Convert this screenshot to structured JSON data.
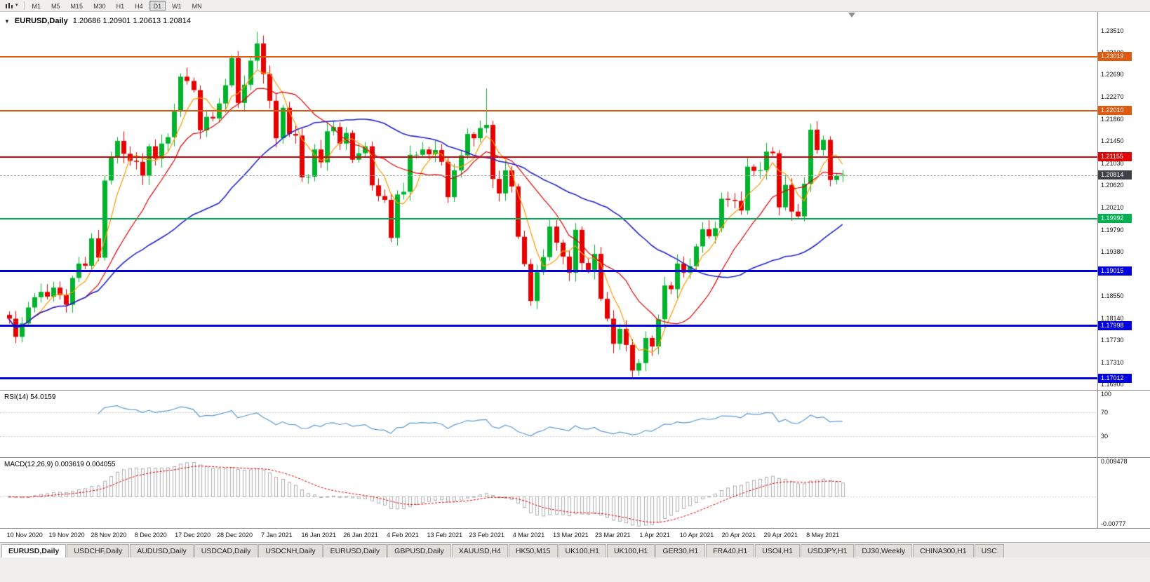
{
  "toolbar": {
    "timeframes": [
      "M1",
      "M5",
      "M15",
      "M30",
      "H1",
      "H4",
      "D1",
      "W1",
      "MN"
    ],
    "active_timeframe": "D1"
  },
  "chart": {
    "title": "EURUSD,Daily",
    "ohlc": "1.20686 1.20901 1.20613 1.20814",
    "price_axis": [
      "1.23510",
      "1.23100",
      "1.22690",
      "1.22270",
      "1.21860",
      "1.21450",
      "1.21030",
      "1.20620",
      "1.20210",
      "1.19790",
      "1.19380",
      "1.18970",
      "1.18550",
      "1.18140",
      "1.17730",
      "1.17310",
      "1.16900"
    ],
    "hlines": [
      {
        "price": "1.23019",
        "value": 1.23019,
        "color": "#DF5A0F",
        "width": 2
      },
      {
        "price": "1.22010",
        "value": 1.2201,
        "color": "#DF5A0F",
        "width": 2
      },
      {
        "price": "1.21155",
        "value": 1.21155,
        "color": "#DD0505",
        "width": 2
      },
      {
        "price": "1.19992",
        "value": 1.19992,
        "color": "#00B050",
        "width": 2
      },
      {
        "price": "1.19015",
        "value": 1.19015,
        "color": "#0000E0",
        "width": 3
      },
      {
        "price": "1.17998",
        "value": 1.17998,
        "color": "#0000E0",
        "width": 3
      },
      {
        "price": "1.17012",
        "value": 1.17012,
        "color": "#0000E0",
        "width": 3
      }
    ],
    "current_price": {
      "label": "1.20814",
      "value": 1.20814,
      "color": "#3f3f46"
    },
    "date_axis": [
      "10 Nov 2020",
      "19 Nov 2020",
      "28 Nov 2020",
      "8 Dec 2020",
      "17 Dec 2020",
      "28 Dec 2020",
      "7 Jan 2021",
      "16 Jan 2021",
      "26 Jan 2021",
      "4 Feb 2021",
      "13 Feb 2021",
      "23 Feb 2021",
      "4 Mar 2021",
      "13 Mar 2021",
      "23 Mar 2021",
      "1 Apr 2021",
      "10 Apr 2021",
      "20 Apr 2021",
      "29 Apr 2021",
      "8 May 2021"
    ]
  },
  "rsi": {
    "label": "RSI(14) 54.0159",
    "levels": [
      {
        "label": "100",
        "value": 100
      },
      {
        "label": "70",
        "value": 70
      },
      {
        "label": "30",
        "value": 30
      }
    ]
  },
  "macd": {
    "label": "MACD(12,26,9) 0.003619 0.004055",
    "axis": [
      {
        "label": "0.009478",
        "value": 0.009478
      },
      {
        "label": "-0.00777",
        "value": -0.00777
      }
    ]
  },
  "tabs": [
    "EURUSD,Daily",
    "USDCHF,Daily",
    "AUDUSD,Daily",
    "USDCAD,Daily",
    "USDCNH,Daily",
    "EURUSD,Daily",
    "GBPUSD,Daily",
    "XAUUSD,H4",
    "HK50,M15",
    "UK100,H1",
    "UK100,H1",
    "GER30,H1",
    "FRA40,H1",
    "USOil,H1",
    "USDJPY,H1",
    "DJ30,Weekly",
    "CHINA300,H1",
    "USC"
  ],
  "active_tab": 0,
  "chart_data": {
    "type": "candlestick",
    "symbol": "EURUSD",
    "timeframe": "Daily",
    "last_bar": {
      "open": 1.20686,
      "high": 1.20901,
      "low": 1.20613,
      "close": 1.20814
    },
    "price_range": {
      "min": 1.168,
      "max": 1.2386
    },
    "first_open": 1.182,
    "closes": [
      1.1813,
      1.1779,
      1.1804,
      1.1834,
      1.1853,
      1.1863,
      1.1854,
      1.1871,
      1.1857,
      1.1839,
      1.1889,
      1.1916,
      1.1912,
      1.1963,
      1.1927,
      1.2071,
      1.2115,
      1.2145,
      1.2121,
      1.2108,
      1.2106,
      1.208,
      1.2135,
      1.2112,
      1.214,
      1.2152,
      1.22,
      1.2265,
      1.2257,
      1.224,
      1.2165,
      1.219,
      1.2187,
      1.2215,
      1.2249,
      1.23,
      1.2216,
      1.225,
      1.2295,
      1.2327,
      1.227,
      1.222,
      1.215,
      1.2207,
      1.2158,
      1.2155,
      1.2077,
      1.2078,
      1.2129,
      1.2105,
      1.2163,
      1.2171,
      1.214,
      1.216,
      1.211,
      1.2122,
      1.2135,
      1.2062,
      1.2042,
      1.2035,
      1.1964,
      1.2045,
      1.205,
      1.2119,
      1.2119,
      1.2129,
      1.212,
      1.2128,
      1.2106,
      1.204,
      1.209,
      1.2118,
      1.2158,
      1.215,
      1.2169,
      1.2175,
      1.2074,
      1.2047,
      1.209,
      1.206,
      1.1966,
      1.1915,
      1.1846,
      1.19,
      1.1928,
      1.1985,
      1.1955,
      1.1929,
      1.1899,
      1.1979,
      1.1917,
      1.1904,
      1.1934,
      1.185,
      1.1813,
      1.1766,
      1.1794,
      1.1764,
      1.1716,
      1.173,
      1.1777,
      1.1761,
      1.1812,
      1.1875,
      1.1868,
      1.1916,
      1.1899,
      1.1911,
      1.1948,
      1.198,
      1.1967,
      1.1982,
      1.2037,
      1.2035,
      1.2033,
      1.2015,
      1.2097,
      1.2089,
      1.209,
      1.2125,
      1.2122,
      1.2021,
      1.2063,
      1.2013,
      1.2004,
      1.2065,
      1.2166,
      1.2128,
      1.2147,
      1.2072,
      1.208,
      1.20814
    ],
    "wick_overrides": {
      "39": {
        "high": 1.2349
      },
      "75": {
        "high": 1.2243
      },
      "98": {
        "low": 1.1704
      },
      "126": {
        "high": 1.2177
      },
      "127": {
        "high": 1.2182
      }
    },
    "colors": {
      "up": "#00B32C",
      "down": "#E60000",
      "background": "#FFFFFF"
    },
    "moving_averages": [
      {
        "period": 5,
        "color": "#FF9900"
      },
      {
        "period": 13,
        "color": "#E00000"
      },
      {
        "period": 34,
        "color": "#2424CC"
      }
    ],
    "indicators": {
      "rsi": {
        "period": 14,
        "range": [
          0,
          100
        ],
        "levels": [
          70,
          30
        ],
        "color": "#5B9BD5"
      },
      "macd": {
        "fast": 12,
        "slow": 26,
        "signal": 9,
        "range": [
          -0.0085,
          0.0105
        ],
        "hist_color": "#B0B0B0",
        "signal_color": "#E00000"
      }
    }
  }
}
